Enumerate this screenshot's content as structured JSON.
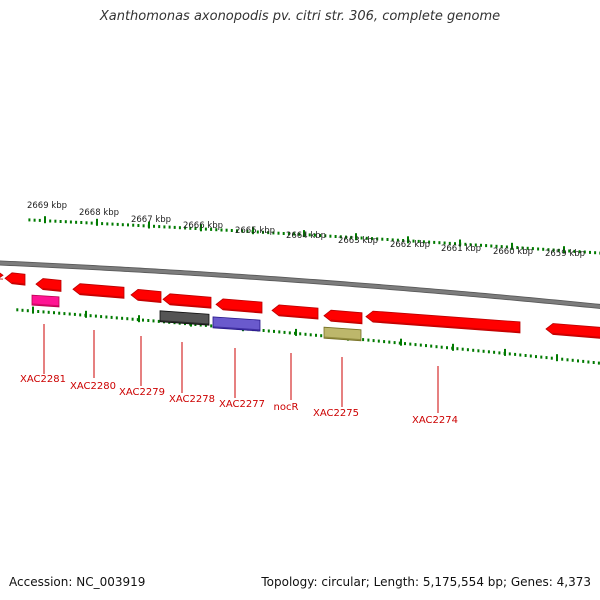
{
  "title": "Xanthomonas axonopodis pv. citri str. 306, complete genome",
  "colors": {
    "backbone": "#7d7d7d",
    "tick": "#007a00",
    "gene_label": "#cc0000",
    "ruler_label": "#222222"
  },
  "ruler_labels": [
    "2669 kbp",
    "2668 kbp",
    "2667 kbp",
    "2666 kbp",
    "2665 kbp",
    "2664 kbp",
    "2663 kbp",
    "2662 kbp",
    "2661 kbp",
    "2660 kbp",
    "2659 kbp"
  ],
  "gene_labels": [
    "XAC2281",
    "XAC2280",
    "XAC2279",
    "XAC2278",
    "XAC2277",
    "nocR",
    "XAC2275",
    "XAC2274"
  ],
  "genes": [
    {
      "color": "#ff0000"
    },
    {
      "color": "#ff0000"
    },
    {
      "color": "#ff0000"
    },
    {
      "color": "#ff1493"
    },
    {
      "color": "#ff0000"
    },
    {
      "color": "#ff0000"
    },
    {
      "color": "#ff0000"
    },
    {
      "color": "#555555"
    },
    {
      "color": "#ff0000"
    },
    {
      "color": "#6a5acd"
    },
    {
      "color": "#ff0000"
    },
    {
      "color": "#ff0000"
    },
    {
      "color": "#bdb76b"
    },
    {
      "color": "#ff0000"
    },
    {
      "color": "#ff0000"
    }
  ],
  "footer": {
    "accession": "Accession: NC_003919",
    "topology": "Topology: circular; Length: 5,175,554 bp; Genes: 4,373"
  }
}
